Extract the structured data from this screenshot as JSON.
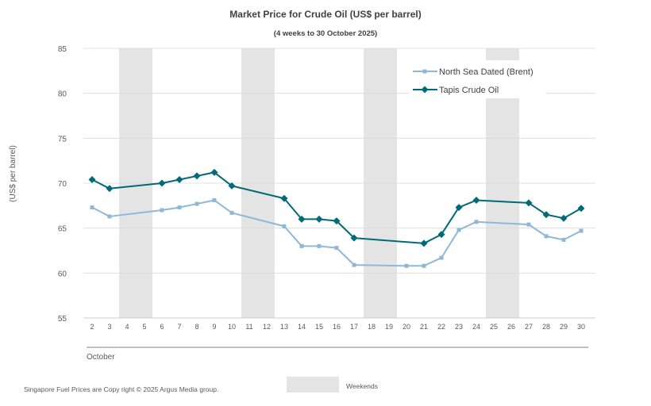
{
  "chart_data": {
    "type": "line",
    "title": "Market Price for Crude  Oil (US$ per barrel)",
    "subtitle": "(4 weeks to 30 October 2025)",
    "ylabel": "(US$ per barrel)",
    "xlabel": "October",
    "ylim": [
      55,
      85
    ],
    "yticks": [
      55,
      60,
      65,
      70,
      75,
      80,
      85
    ],
    "grid": true,
    "legend_position": "top-right",
    "categories": [
      "2",
      "3",
      "4",
      "5",
      "6",
      "7",
      "8",
      "9",
      "10",
      "11",
      "12",
      "13",
      "14",
      "15",
      "16",
      "17",
      "18",
      "19",
      "20",
      "21",
      "22",
      "23",
      "24",
      "25",
      "26",
      "27",
      "28",
      "29",
      "30"
    ],
    "weekend_bands": [
      [
        "4",
        "5"
      ],
      [
        "11",
        "12"
      ],
      [
        "18",
        "19"
      ],
      [
        "25",
        "26"
      ]
    ],
    "series": [
      {
        "name": "North Sea Dated (Brent)",
        "color": "#8EB8D6",
        "marker": "square",
        "points": [
          {
            "x": "2",
            "y": 67.3
          },
          {
            "x": "3",
            "y": 66.3
          },
          {
            "x": "6",
            "y": 67.0
          },
          {
            "x": "7",
            "y": 67.3
          },
          {
            "x": "8",
            "y": 67.7
          },
          {
            "x": "9",
            "y": 68.1
          },
          {
            "x": "10",
            "y": 66.7
          },
          {
            "x": "13",
            "y": 65.2
          },
          {
            "x": "14",
            "y": 63.0
          },
          {
            "x": "15",
            "y": 63.0
          },
          {
            "x": "16",
            "y": 62.8
          },
          {
            "x": "17",
            "y": 60.9
          },
          {
            "x": "20",
            "y": 60.8
          },
          {
            "x": "21",
            "y": 60.8
          },
          {
            "x": "22",
            "y": 61.7
          },
          {
            "x": "23",
            "y": 64.8
          },
          {
            "x": "24",
            "y": 65.7
          },
          {
            "x": "27",
            "y": 65.4
          },
          {
            "x": "28",
            "y": 64.1
          },
          {
            "x": "29",
            "y": 63.7
          },
          {
            "x": "30",
            "y": 64.7
          }
        ]
      },
      {
        "name": "Tapis Crude Oil",
        "color": "#006A78",
        "marker": "diamond",
        "points": [
          {
            "x": "2",
            "y": 70.4
          },
          {
            "x": "3",
            "y": 69.4
          },
          {
            "x": "6",
            "y": 70.0
          },
          {
            "x": "7",
            "y": 70.4
          },
          {
            "x": "8",
            "y": 70.8
          },
          {
            "x": "9",
            "y": 71.2
          },
          {
            "x": "10",
            "y": 69.7
          },
          {
            "x": "13",
            "y": 68.3
          },
          {
            "x": "14",
            "y": 66.0
          },
          {
            "x": "15",
            "y": 66.0
          },
          {
            "x": "16",
            "y": 65.8
          },
          {
            "x": "17",
            "y": 63.9
          },
          {
            "x": "21",
            "y": 63.3
          },
          {
            "x": "22",
            "y": 64.3
          },
          {
            "x": "23",
            "y": 67.3
          },
          {
            "x": "24",
            "y": 68.1
          },
          {
            "x": "27",
            "y": 67.8
          },
          {
            "x": "28",
            "y": 66.5
          },
          {
            "x": "29",
            "y": 66.1
          },
          {
            "x": "30",
            "y": 67.2
          }
        ]
      }
    ]
  },
  "footer": {
    "copyright": "Singapore  Fuel Prices are  Copy right © 2025 Argus Media  group.",
    "weekends_label": "Weekends",
    "weekend_color": "#E4E4E4"
  }
}
